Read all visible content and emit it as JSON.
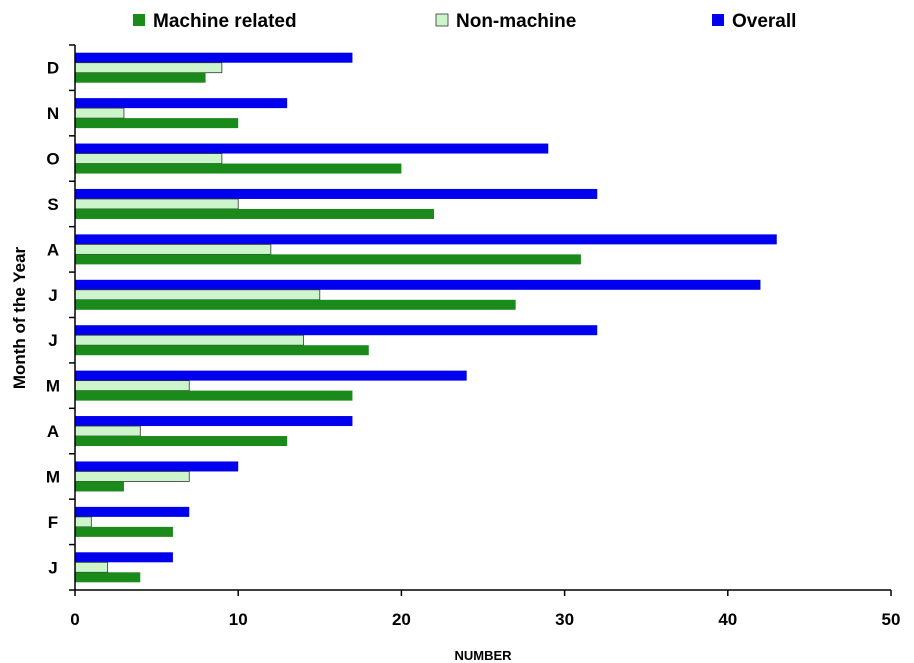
{
  "chart_data": {
    "type": "bar",
    "orientation": "horizontal",
    "categories": [
      "J",
      "F",
      "M",
      "A",
      "M",
      "J",
      "J",
      "A",
      "S",
      "O",
      "N",
      "D"
    ],
    "series": [
      {
        "name": "Machine related",
        "color": "#1a8a1a",
        "values": [
          4,
          6,
          3,
          13,
          17,
          18,
          27,
          31,
          22,
          20,
          10,
          8
        ]
      },
      {
        "name": "Non-machine",
        "color": "#ccf5cc",
        "values": [
          2,
          1,
          7,
          4,
          7,
          14,
          15,
          12,
          10,
          9,
          3,
          9
        ]
      },
      {
        "name": "Overall",
        "color": "#0000ee",
        "values": [
          6,
          7,
          10,
          17,
          24,
          32,
          42,
          43,
          32,
          29,
          13,
          17
        ]
      }
    ],
    "xlim": [
      0,
      50
    ],
    "xticks": [
      0,
      10,
      20,
      30,
      40,
      50
    ],
    "xlabel": "NUMBER",
    "ylabel": "Month of the Year",
    "legend_position": "top",
    "grid": false
  }
}
